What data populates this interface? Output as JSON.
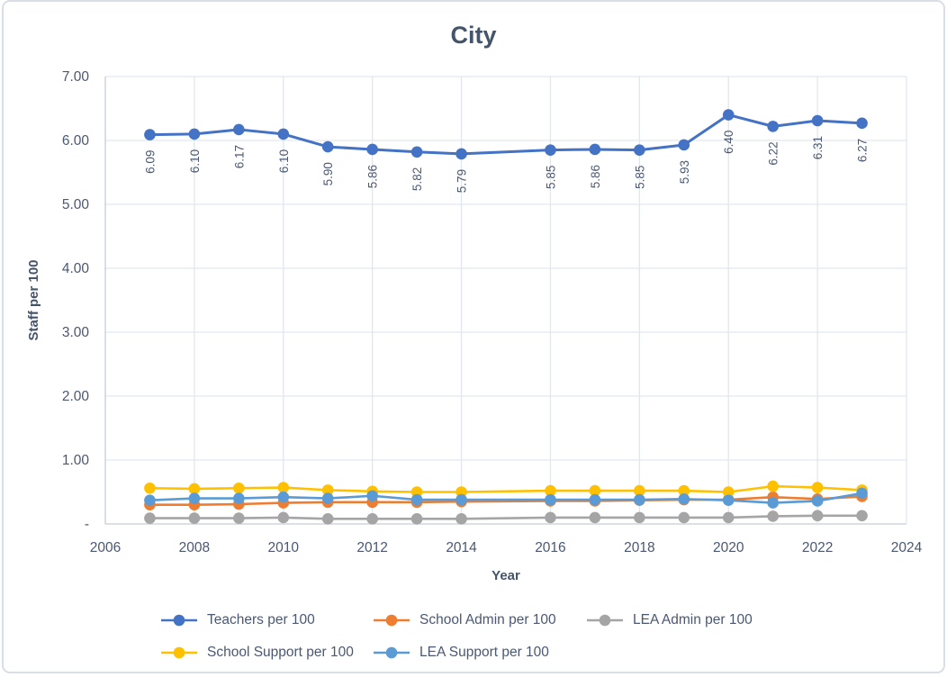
{
  "title": "City",
  "chart_data": {
    "type": "line",
    "title": "City",
    "xlabel": "Year",
    "ylabel": "Staff per 100",
    "xlim": [
      2006,
      2024
    ],
    "ylim": [
      0,
      7
    ],
    "x_tick_labels": [
      "2006",
      "2008",
      "2010",
      "2012",
      "2014",
      "2016",
      "2018",
      "2020",
      "2022",
      "2024"
    ],
    "x_tick_values": [
      2006,
      2008,
      2010,
      2012,
      2014,
      2016,
      2018,
      2020,
      2022,
      2024
    ],
    "y_tick_labels": [
      "-",
      "1.00",
      "2.00",
      "3.00",
      "4.00",
      "5.00",
      "6.00",
      "7.00"
    ],
    "y_tick_values": [
      0,
      1,
      2,
      3,
      4,
      5,
      6,
      7
    ],
    "grid": true,
    "legend_position": "bottom",
    "x": [
      2007,
      2008,
      2009,
      2010,
      2011,
      2012,
      2013,
      2014,
      2016,
      2017,
      2018,
      2019,
      2020,
      2021,
      2022,
      2023
    ],
    "series": [
      {
        "name": "Teachers per 100",
        "color": "#4472C4",
        "values": [
          6.09,
          6.1,
          6.17,
          6.1,
          5.9,
          5.86,
          5.82,
          5.79,
          5.85,
          5.86,
          5.85,
          5.93,
          6.4,
          6.22,
          6.31,
          6.27
        ],
        "data_labels": [
          "6.09",
          "6.10",
          "6.17",
          "6.10",
          "5.90",
          "5.86",
          "5.82",
          "5.79",
          "5.85",
          "5.86",
          "5.85",
          "5.93",
          "6.40",
          "6.22",
          "6.31",
          "6.27"
        ]
      },
      {
        "name": "School Admin per 100",
        "color": "#ED7D31",
        "values": [
          0.3,
          0.3,
          0.31,
          0.33,
          0.34,
          0.34,
          0.34,
          0.35,
          0.36,
          0.36,
          0.37,
          0.38,
          0.38,
          0.42,
          0.39,
          0.43
        ]
      },
      {
        "name": "LEA Admin per 100",
        "color": "#A5A5A5",
        "values": [
          0.09,
          0.09,
          0.09,
          0.1,
          0.08,
          0.08,
          0.08,
          0.08,
          0.1,
          0.1,
          0.1,
          0.1,
          0.1,
          0.12,
          0.13,
          0.13
        ]
      },
      {
        "name": "School Support per 100",
        "color": "#FFC000",
        "values": [
          0.56,
          0.55,
          0.56,
          0.57,
          0.53,
          0.51,
          0.5,
          0.5,
          0.52,
          0.52,
          0.52,
          0.52,
          0.5,
          0.59,
          0.57,
          0.53
        ]
      },
      {
        "name": "LEA Support per 100",
        "color": "#5B9BD5",
        "values": [
          0.37,
          0.4,
          0.4,
          0.42,
          0.4,
          0.44,
          0.38,
          0.38,
          0.38,
          0.38,
          0.38,
          0.39,
          0.37,
          0.33,
          0.36,
          0.48
        ]
      }
    ],
    "legend_rows": [
      [
        0,
        1,
        2
      ],
      [
        3,
        4
      ]
    ]
  },
  "style_colors": {
    "title_text": "#44546a",
    "tick_text": "#4a5872",
    "data_label_text": "#4a5872",
    "gridline": "#e2e6ed",
    "axis_line": "#c6ccd8"
  }
}
